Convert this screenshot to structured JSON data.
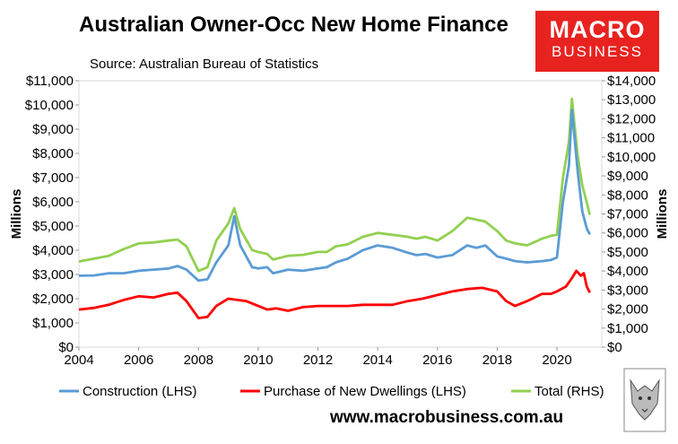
{
  "header": {
    "title": "Australian Owner-Occ New Home Finance",
    "source": "Source: Australian Bureau of Statistics"
  },
  "logo": {
    "line1": "MACRO",
    "line2": "BUSINESS",
    "color": "#e8221f"
  },
  "footer": {
    "url": "www.macrobusiness.com.au"
  },
  "chart_data": {
    "type": "line",
    "title": "Australian Owner-Occ New Home Finance",
    "ylabel": "Millions",
    "y2label": "Millions",
    "xlim": [
      2004,
      2021.5
    ],
    "ylim": [
      0,
      11000
    ],
    "y2lim": [
      0,
      14000
    ],
    "x_ticks": [
      "2004",
      "2006",
      "2008",
      "2010",
      "2012",
      "2014",
      "2016",
      "2018",
      "2020"
    ],
    "y_ticks": [
      "$0",
      "$1,000",
      "$2,000",
      "$3,000",
      "$4,000",
      "$5,000",
      "$6,000",
      "$7,000",
      "$8,000",
      "$9,000",
      "$10,000",
      "$11,000"
    ],
    "y2_ticks": [
      "$0",
      "$1,000",
      "$2,000",
      "$3,000",
      "$4,000",
      "$5,000",
      "$6,000",
      "$7,000",
      "$8,000",
      "$9,000",
      "$10,000",
      "$11,000",
      "$12,000",
      "$13,000",
      "$14,000"
    ],
    "grid": false,
    "legend_position": "bottom",
    "series": [
      {
        "name": "Construction (LHS)",
        "axis": "left",
        "color": "#5b9bd5",
        "points": [
          [
            2004,
            2950
          ],
          [
            2004.5,
            2960
          ],
          [
            2005,
            3050
          ],
          [
            2005.5,
            3050
          ],
          [
            2006,
            3150
          ],
          [
            2006.5,
            3200
          ],
          [
            2007,
            3250
          ],
          [
            2007.3,
            3350
          ],
          [
            2007.6,
            3200
          ],
          [
            2008,
            2750
          ],
          [
            2008.3,
            2800
          ],
          [
            2008.6,
            3500
          ],
          [
            2009,
            4200
          ],
          [
            2009.2,
            5400
          ],
          [
            2009.4,
            4200
          ],
          [
            2009.8,
            3300
          ],
          [
            2010,
            3250
          ],
          [
            2010.3,
            3300
          ],
          [
            2010.5,
            3050
          ],
          [
            2011,
            3200
          ],
          [
            2011.5,
            3150
          ],
          [
            2012,
            3250
          ],
          [
            2012.3,
            3300
          ],
          [
            2012.6,
            3500
          ],
          [
            2013,
            3650
          ],
          [
            2013.5,
            4000
          ],
          [
            2014,
            4200
          ],
          [
            2014.5,
            4100
          ],
          [
            2015,
            3900
          ],
          [
            2015.3,
            3800
          ],
          [
            2015.6,
            3850
          ],
          [
            2016,
            3700
          ],
          [
            2016.5,
            3800
          ],
          [
            2017,
            4200
          ],
          [
            2017.3,
            4100
          ],
          [
            2017.6,
            4200
          ],
          [
            2018,
            3750
          ],
          [
            2018.3,
            3650
          ],
          [
            2018.6,
            3550
          ],
          [
            2019,
            3500
          ],
          [
            2019.5,
            3550
          ],
          [
            2019.8,
            3600
          ],
          [
            2020,
            3700
          ],
          [
            2020.2,
            6000
          ],
          [
            2020.4,
            7500
          ],
          [
            2020.5,
            9800
          ],
          [
            2020.7,
            7200
          ],
          [
            2020.85,
            5600
          ],
          [
            2021,
            4900
          ],
          [
            2021.1,
            4650
          ]
        ]
      },
      {
        "name": "Purchase of New Dwellings (LHS)",
        "axis": "left",
        "color": "#ff0000",
        "points": [
          [
            2004,
            1550
          ],
          [
            2004.5,
            1620
          ],
          [
            2005,
            1750
          ],
          [
            2005.5,
            1950
          ],
          [
            2006,
            2100
          ],
          [
            2006.5,
            2050
          ],
          [
            2007,
            2200
          ],
          [
            2007.3,
            2250
          ],
          [
            2007.6,
            1900
          ],
          [
            2008,
            1200
          ],
          [
            2008.3,
            1250
          ],
          [
            2008.6,
            1700
          ],
          [
            2009,
            2000
          ],
          [
            2009.3,
            1950
          ],
          [
            2009.6,
            1900
          ],
          [
            2010,
            1700
          ],
          [
            2010.3,
            1550
          ],
          [
            2010.6,
            1600
          ],
          [
            2011,
            1500
          ],
          [
            2011.5,
            1650
          ],
          [
            2012,
            1700
          ],
          [
            2012.5,
            1700
          ],
          [
            2013,
            1700
          ],
          [
            2013.5,
            1750
          ],
          [
            2014,
            1750
          ],
          [
            2014.5,
            1750
          ],
          [
            2015,
            1900
          ],
          [
            2015.5,
            2000
          ],
          [
            2016,
            2150
          ],
          [
            2016.5,
            2300
          ],
          [
            2017,
            2400
          ],
          [
            2017.5,
            2450
          ],
          [
            2018,
            2300
          ],
          [
            2018.3,
            1900
          ],
          [
            2018.6,
            1700
          ],
          [
            2019,
            1900
          ],
          [
            2019.5,
            2200
          ],
          [
            2019.8,
            2200
          ],
          [
            2020,
            2300
          ],
          [
            2020.3,
            2500
          ],
          [
            2020.5,
            2850
          ],
          [
            2020.65,
            3150
          ],
          [
            2020.8,
            2950
          ],
          [
            2020.9,
            3050
          ],
          [
            2021,
            2500
          ],
          [
            2021.1,
            2250
          ]
        ]
      },
      {
        "name": "Total (RHS)",
        "axis": "right",
        "color": "#92d050",
        "points": [
          [
            2004,
            4500
          ],
          [
            2004.5,
            4650
          ],
          [
            2005,
            4800
          ],
          [
            2005.5,
            5150
          ],
          [
            2006,
            5450
          ],
          [
            2006.5,
            5500
          ],
          [
            2007,
            5600
          ],
          [
            2007.3,
            5650
          ],
          [
            2007.6,
            5300
          ],
          [
            2008,
            4000
          ],
          [
            2008.3,
            4200
          ],
          [
            2008.6,
            5600
          ],
          [
            2009,
            6500
          ],
          [
            2009.2,
            7300
          ],
          [
            2009.4,
            6200
          ],
          [
            2009.8,
            5100
          ],
          [
            2010,
            5000
          ],
          [
            2010.3,
            4900
          ],
          [
            2010.5,
            4600
          ],
          [
            2011,
            4800
          ],
          [
            2011.5,
            4850
          ],
          [
            2012,
            5000
          ],
          [
            2012.3,
            5000
          ],
          [
            2012.6,
            5300
          ],
          [
            2013,
            5400
          ],
          [
            2013.5,
            5800
          ],
          [
            2014,
            6000
          ],
          [
            2014.5,
            5900
          ],
          [
            2015,
            5800
          ],
          [
            2015.3,
            5700
          ],
          [
            2015.6,
            5800
          ],
          [
            2016,
            5600
          ],
          [
            2016.5,
            6100
          ],
          [
            2017,
            6800
          ],
          [
            2017.3,
            6700
          ],
          [
            2017.6,
            6600
          ],
          [
            2018,
            6100
          ],
          [
            2018.3,
            5600
          ],
          [
            2018.6,
            5450
          ],
          [
            2019,
            5350
          ],
          [
            2019.5,
            5700
          ],
          [
            2019.8,
            5850
          ],
          [
            2020,
            5900
          ],
          [
            2020.2,
            8900
          ],
          [
            2020.4,
            10800
          ],
          [
            2020.5,
            13050
          ],
          [
            2020.7,
            10000
          ],
          [
            2020.85,
            8500
          ],
          [
            2021,
            7600
          ],
          [
            2021.1,
            6950
          ]
        ]
      }
    ]
  }
}
